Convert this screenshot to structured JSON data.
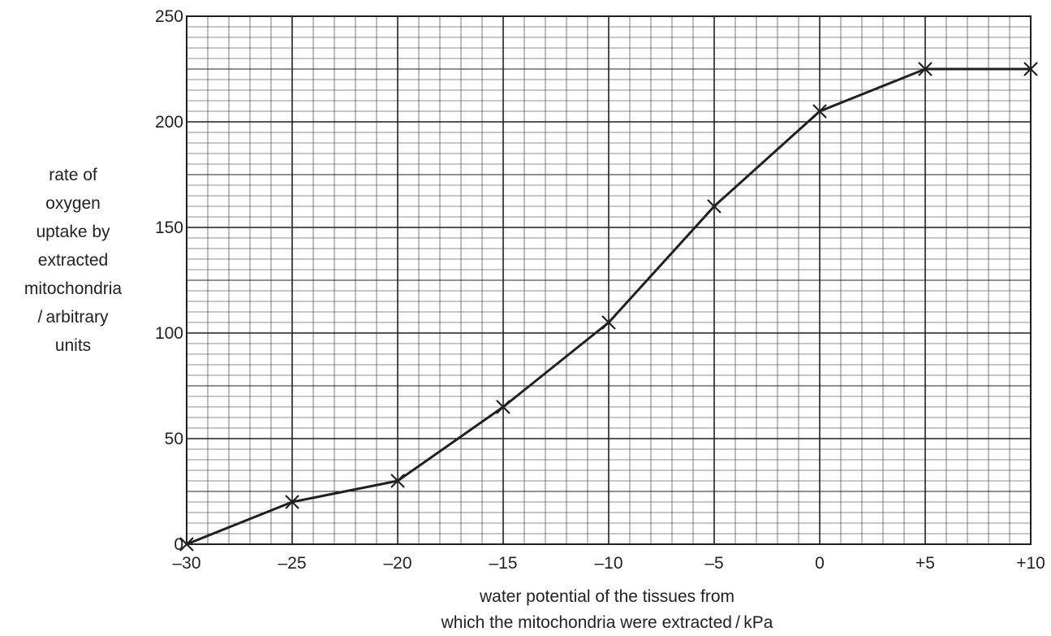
{
  "chart_data": {
    "type": "line",
    "title": "",
    "xlabel": [
      "water potential of the tissues from",
      "which the mitochondria were extracted / kPa"
    ],
    "ylabel": [
      "rate of",
      "oxygen",
      "uptake by",
      "extracted",
      "mitochondria",
      "/ arbitrary",
      "units"
    ],
    "xlim": [
      -30,
      10
    ],
    "ylim": [
      0,
      250
    ],
    "x_ticks": [
      -30,
      -25,
      -20,
      -15,
      -10,
      -5,
      0,
      5,
      10
    ],
    "x_tick_labels": [
      "–30",
      "–25",
      "–20",
      "–15",
      "–10",
      "–5",
      "0",
      "+5",
      "+10"
    ],
    "y_ticks": [
      0,
      50,
      100,
      150,
      200,
      250
    ],
    "y_tick_labels": [
      "0",
      "50",
      "100",
      "150",
      "200",
      "250"
    ],
    "grid": true,
    "legend": "none",
    "marker": "x",
    "line_color": "#231f20",
    "x": [
      -30,
      -25,
      -20,
      -15,
      -10,
      -5,
      0,
      5,
      10
    ],
    "y": [
      0,
      20,
      30,
      65,
      105,
      160,
      205,
      225,
      225
    ]
  }
}
